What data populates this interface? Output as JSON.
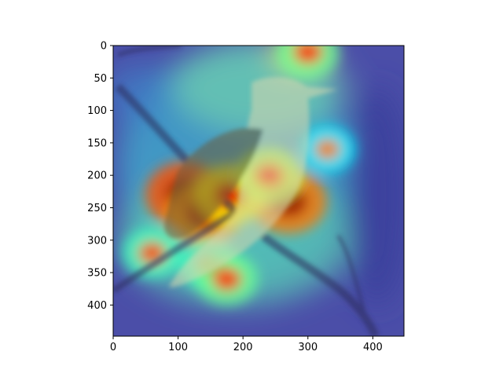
{
  "chart_data": {
    "type": "heatmap",
    "title": "",
    "xlabel": "",
    "ylabel": "",
    "xlim": [
      0,
      448
    ],
    "ylim": [
      448,
      0
    ],
    "x_ticks": [
      0,
      100,
      200,
      300,
      400
    ],
    "y_ticks": [
      0,
      50,
      100,
      150,
      200,
      250,
      300,
      350,
      400
    ],
    "colormap": "jet",
    "grid": false,
    "legend": "none",
    "image_content": "bird perched on branch, grayscale photo overlaid with saliency heatmap",
    "hotspots": [
      {
        "x": 110,
        "y": 230,
        "intensity": 1.0
      },
      {
        "x": 140,
        "y": 260,
        "intensity": 0.9
      },
      {
        "x": 270,
        "y": 240,
        "intensity": 0.95
      },
      {
        "x": 180,
        "y": 230,
        "intensity": 0.8
      },
      {
        "x": 240,
        "y": 200,
        "intensity": 0.7
      },
      {
        "x": 60,
        "y": 320,
        "intensity": 0.55
      },
      {
        "x": 150,
        "y": 340,
        "intensity": 0.55
      },
      {
        "x": 330,
        "y": 160,
        "intensity": 0.45
      },
      {
        "x": 300,
        "y": 10,
        "intensity": 0.6
      },
      {
        "x": 175,
        "y": 360,
        "intensity": 0.6
      }
    ]
  },
  "colors": {
    "background": "#ffffff",
    "spine": "#000000",
    "heat_low": "#00007f",
    "heat_high": "#7f0000"
  }
}
